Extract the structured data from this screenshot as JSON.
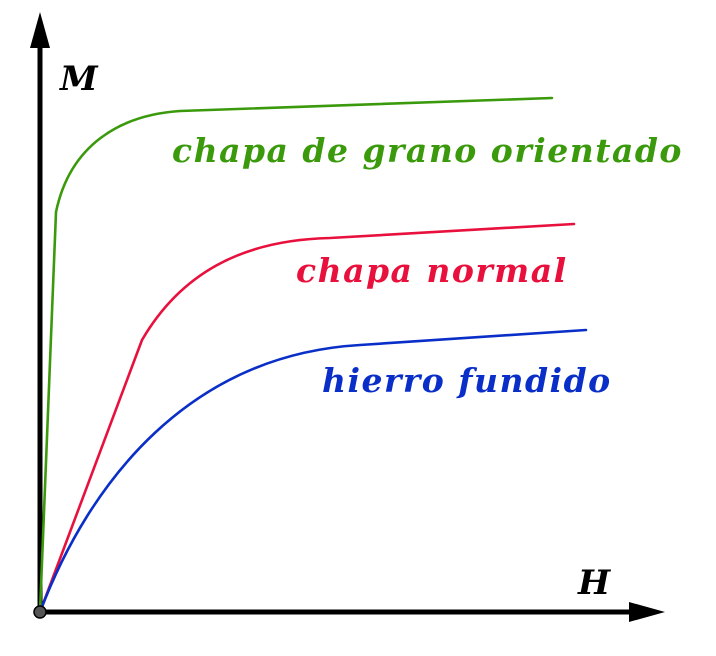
{
  "axes": {
    "x_label": "H",
    "y_label": "M"
  },
  "curves": [
    {
      "id": "grain-oriented",
      "label": "chapa de grano orientado",
      "color": "#3a9a0c"
    },
    {
      "id": "normal-sheet",
      "label": "chapa normal",
      "color": "#e8103c"
    },
    {
      "id": "cast-iron",
      "label": "hierro fundido",
      "color": "#0a2fc8"
    }
  ],
  "colors": {
    "axis": "#000000",
    "origin_dot": "#555555"
  }
}
